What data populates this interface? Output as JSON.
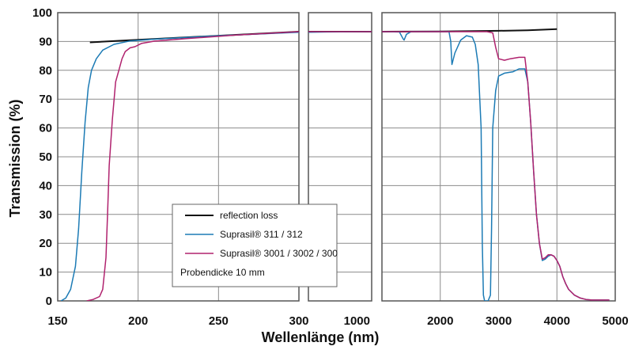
{
  "chart_data": {
    "type": "line",
    "xlabel": "Wellenlänge (nm)",
    "ylabel": "Transmission (%)",
    "ylim": [
      0,
      100
    ],
    "yticks": [
      "0",
      "10",
      "20",
      "30",
      "40",
      "50",
      "60",
      "70",
      "80",
      "90",
      "100"
    ],
    "segments": [
      {
        "xlim": [
          150,
          300
        ],
        "xticks": [
          "150",
          "200",
          "250",
          "300"
        ]
      },
      {
        "xlim": [
          300,
          1000
        ],
        "xticks": [
          "1000"
        ]
      },
      {
        "xlim": [
          1000,
          5000
        ],
        "xticks": [
          "2000",
          "3000",
          "4000",
          "5000"
        ]
      }
    ],
    "grid": true,
    "legend": {
      "placement": "bottom-center",
      "note": "Probendicke 10 mm"
    },
    "series": [
      {
        "name": "reflection loss",
        "color": "#111111",
        "points": [
          [
            170,
            89.7
          ],
          [
            180,
            90
          ],
          [
            200,
            90.6
          ],
          [
            250,
            92
          ],
          [
            300,
            93.4
          ],
          [
            500,
            93.4
          ],
          [
            1000,
            93.4
          ],
          [
            2000,
            93.5
          ],
          [
            3000,
            93.7
          ],
          [
            3500,
            93.9
          ],
          [
            4000,
            94.3
          ]
        ]
      },
      {
        "name": "Suprasil® 311 / 312",
        "color": "#1c7bb5",
        "points": [
          [
            152,
            0
          ],
          [
            155,
            1
          ],
          [
            158,
            4
          ],
          [
            161,
            12
          ],
          [
            163,
            25
          ],
          [
            165,
            45
          ],
          [
            167,
            62
          ],
          [
            169,
            74
          ],
          [
            171,
            80
          ],
          [
            174,
            84
          ],
          [
            178,
            87
          ],
          [
            185,
            89
          ],
          [
            195,
            90.2
          ],
          [
            210,
            90.8
          ],
          [
            250,
            92
          ],
          [
            300,
            93.2
          ],
          [
            500,
            93.3
          ],
          [
            1000,
            93.4
          ],
          [
            1300,
            93.3
          ],
          [
            1360,
            91
          ],
          [
            1380,
            90.5
          ],
          [
            1420,
            92.5
          ],
          [
            1500,
            93.4
          ],
          [
            2150,
            93.4
          ],
          [
            2180,
            90
          ],
          [
            2200,
            82
          ],
          [
            2250,
            86
          ],
          [
            2350,
            90.5
          ],
          [
            2450,
            92
          ],
          [
            2550,
            91.5
          ],
          [
            2600,
            89
          ],
          [
            2650,
            82
          ],
          [
            2700,
            60
          ],
          [
            2720,
            20
          ],
          [
            2740,
            2
          ],
          [
            2760,
            0
          ],
          [
            2820,
            0
          ],
          [
            2860,
            2
          ],
          [
            2880,
            25
          ],
          [
            2900,
            60
          ],
          [
            2950,
            73
          ],
          [
            3000,
            78
          ],
          [
            3100,
            79
          ],
          [
            3250,
            79.5
          ],
          [
            3350,
            80.5
          ],
          [
            3450,
            80.5
          ],
          [
            3500,
            76
          ],
          [
            3550,
            62
          ],
          [
            3600,
            45
          ],
          [
            3650,
            30
          ],
          [
            3700,
            20
          ],
          [
            3750,
            14
          ],
          [
            3800,
            14.5
          ],
          [
            3850,
            15.5
          ],
          [
            3900,
            16
          ],
          [
            3950,
            15.5
          ],
          [
            4000,
            14
          ],
          [
            4050,
            12
          ],
          [
            4100,
            8.5
          ],
          [
            4150,
            6
          ],
          [
            4200,
            4
          ],
          [
            4300,
            2
          ],
          [
            4400,
            1
          ],
          [
            4500,
            0.5
          ],
          [
            4600,
            0.3
          ],
          [
            4900,
            0.3
          ]
        ]
      },
      {
        "name": "Suprasil® 3001 / 3002 / 300",
        "color": "#b0226e",
        "points": [
          [
            168,
            0
          ],
          [
            172,
            0.5
          ],
          [
            176,
            1.5
          ],
          [
            178,
            4
          ],
          [
            180,
            15
          ],
          [
            181,
            30
          ],
          [
            182,
            47
          ],
          [
            184,
            63
          ],
          [
            186,
            76
          ],
          [
            188,
            80
          ],
          [
            190,
            84
          ],
          [
            192,
            86.5
          ],
          [
            195,
            87.8
          ],
          [
            198,
            88.2
          ],
          [
            202,
            89.3
          ],
          [
            210,
            90.1
          ],
          [
            230,
            91
          ],
          [
            260,
            92.2
          ],
          [
            300,
            93.4
          ],
          [
            500,
            93.4
          ],
          [
            1000,
            93.4
          ],
          [
            2000,
            93.4
          ],
          [
            2500,
            93.4
          ],
          [
            2800,
            93.4
          ],
          [
            2900,
            93
          ],
          [
            2950,
            88
          ],
          [
            3000,
            84
          ],
          [
            3100,
            83.5
          ],
          [
            3200,
            84
          ],
          [
            3350,
            84.5
          ],
          [
            3450,
            84.5
          ],
          [
            3500,
            76
          ],
          [
            3550,
            62
          ],
          [
            3600,
            45
          ],
          [
            3650,
            30
          ],
          [
            3700,
            20
          ],
          [
            3750,
            14.5
          ],
          [
            3800,
            15
          ],
          [
            3850,
            16
          ],
          [
            3900,
            16
          ],
          [
            3950,
            15.5
          ],
          [
            4000,
            14
          ],
          [
            4050,
            12
          ],
          [
            4100,
            8.5
          ],
          [
            4150,
            6
          ],
          [
            4200,
            4
          ],
          [
            4300,
            2
          ],
          [
            4400,
            1
          ],
          [
            4500,
            0.5
          ],
          [
            4600,
            0.3
          ],
          [
            4900,
            0.3
          ]
        ]
      }
    ]
  }
}
